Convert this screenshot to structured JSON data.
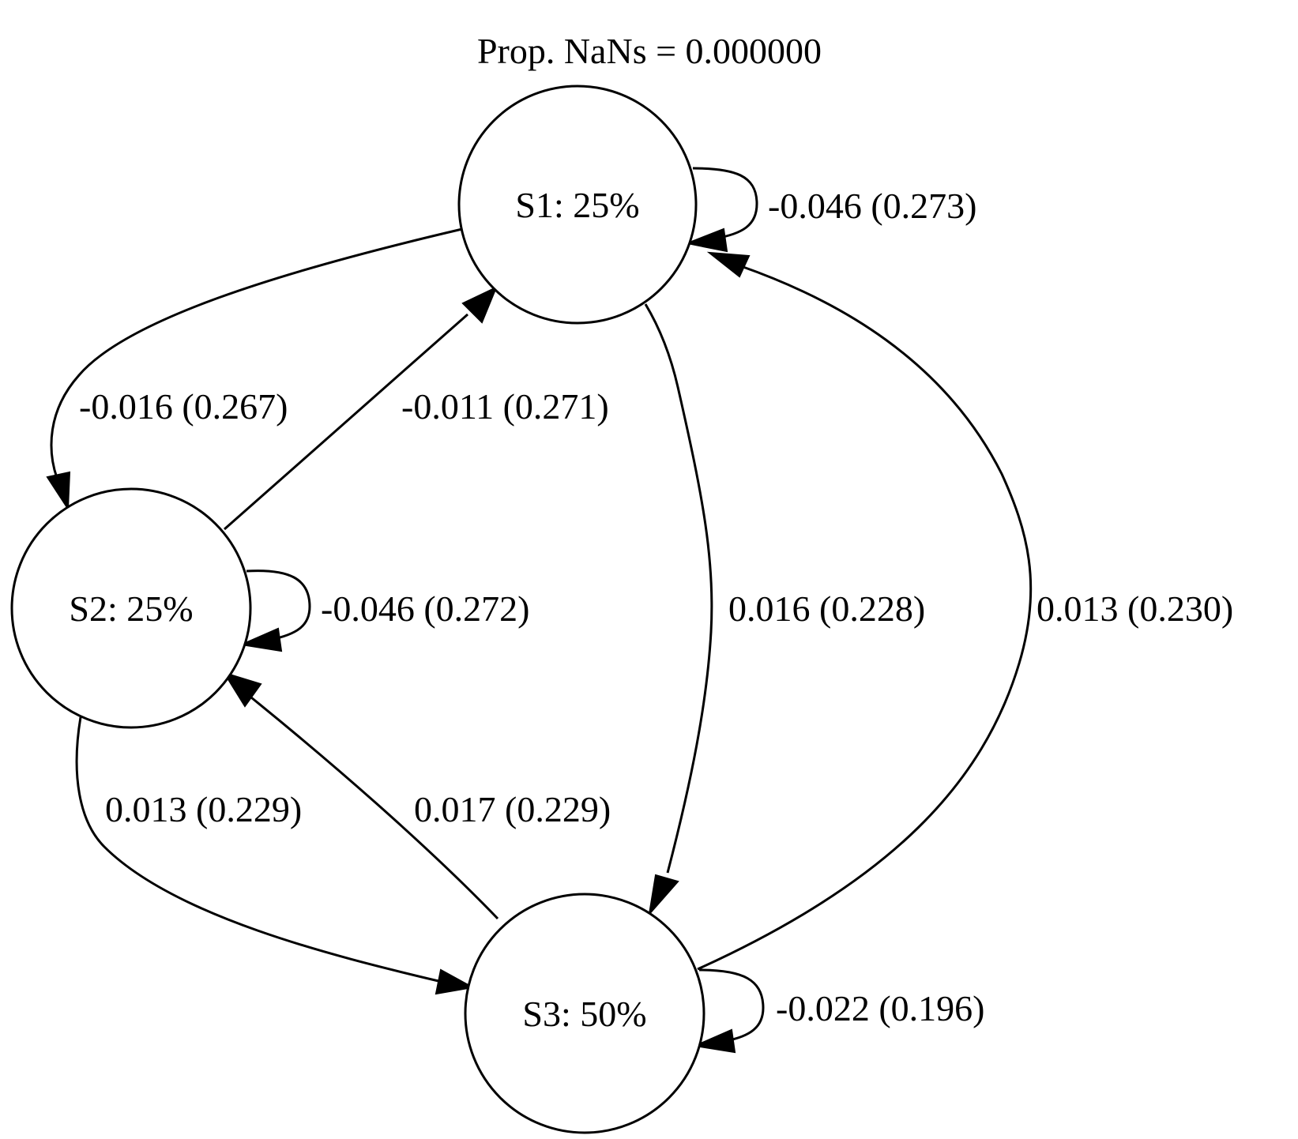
{
  "title": "Prop. NaNs = 0.000000",
  "nodes": [
    {
      "id": "S1",
      "label": "S1: 25%"
    },
    {
      "id": "S2",
      "label": "S2: 25%"
    },
    {
      "id": "S3",
      "label": "S3: 50%"
    }
  ],
  "edges": [
    {
      "from": "S1",
      "to": "S1",
      "label": "-0.046 (0.273)"
    },
    {
      "from": "S1",
      "to": "S2",
      "label": "-0.016 (0.267)"
    },
    {
      "from": "S2",
      "to": "S1",
      "label": "-0.011 (0.271)"
    },
    {
      "from": "S1",
      "to": "S3",
      "label": "0.016 (0.228)"
    },
    {
      "from": "S3",
      "to": "S1",
      "label": "0.013 (0.230)"
    },
    {
      "from": "S2",
      "to": "S2",
      "label": "-0.046 (0.272)"
    },
    {
      "from": "S2",
      "to": "S3",
      "label": "0.013 (0.229)"
    },
    {
      "from": "S3",
      "to": "S2",
      "label": "0.017 (0.229)"
    },
    {
      "from": "S3",
      "to": "S3",
      "label": "-0.022 (0.196)"
    }
  ]
}
